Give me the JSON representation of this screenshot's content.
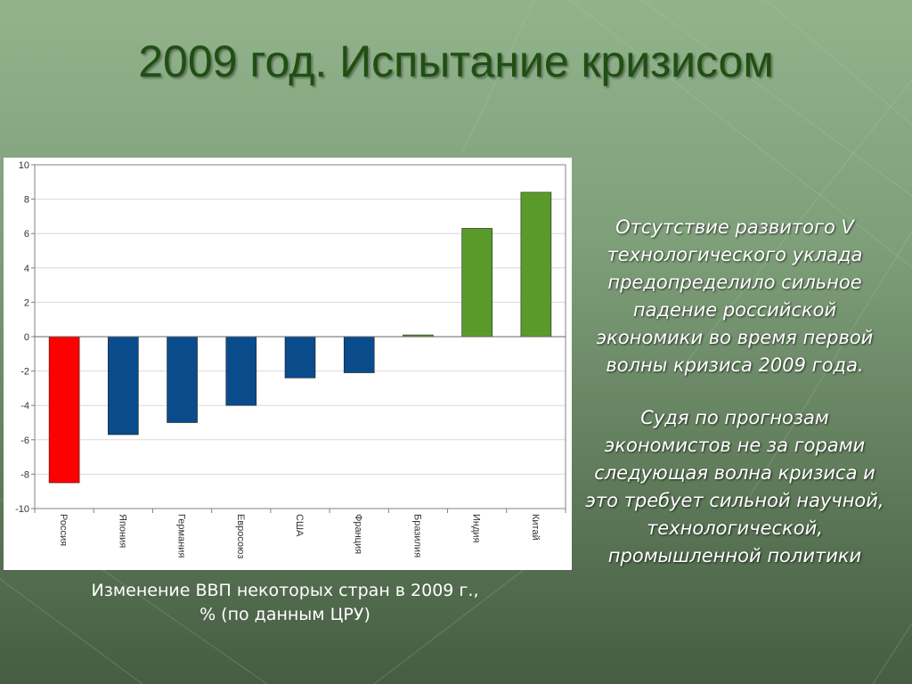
{
  "title": "2009 год. Испытание кризисом",
  "caption_line1": "Изменение ВВП некоторых стран в 2009 г.,",
  "caption_line2": "% (по данным ЦРУ)",
  "paragraph1": "Отсутствие развитого V технологического уклада предопределило сильное падение российской экономики во время первой волны кризиса 2009 года.",
  "paragraph2": "Судя по прогнозам экономистов не за горами следующая волна кризиса и это требует сильной научной, технологической, промышленной политики",
  "chart_data": {
    "type": "bar",
    "categories": [
      "Россия",
      "Япония",
      "Германия",
      "Евросоюз",
      "США",
      "Франция",
      "Бразилия",
      "Индия",
      "Китай"
    ],
    "values": [
      -8.5,
      -5.7,
      -5.0,
      -4.0,
      -2.4,
      -2.1,
      0.1,
      6.3,
      8.4
    ],
    "bar_colors": [
      "#ff0000",
      "#0a4b8c",
      "#0a4b8c",
      "#0a4b8c",
      "#0a4b8c",
      "#0a4b8c",
      "#5a9a2a",
      "#5a9a2a",
      "#5a9a2a"
    ],
    "ylim": [
      -10,
      10
    ],
    "yticks": [
      -10,
      -8,
      -6,
      -4,
      -2,
      0,
      2,
      4,
      6,
      8,
      10
    ],
    "grid": true,
    "title": "",
    "xlabel": "",
    "ylabel": ""
  }
}
